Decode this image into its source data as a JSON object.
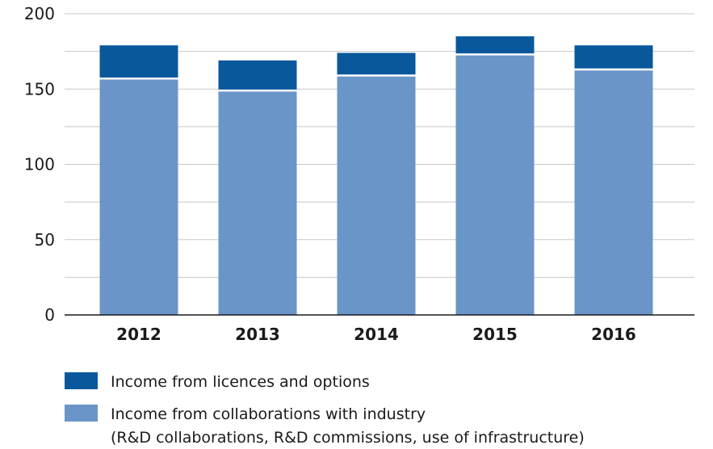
{
  "chart_data": {
    "type": "bar",
    "stacked": true,
    "categories": [
      "2012",
      "2013",
      "2014",
      "2015",
      "2016"
    ],
    "series": [
      {
        "name": "Income from collaborations with industry",
        "name_line2": "(R&D collaborations, R&D commissions, use of infrastructure)",
        "values": [
          157,
          149,
          159,
          173,
          163
        ],
        "color": "#6a95c8"
      },
      {
        "name": "Income from licences and options",
        "values": [
          22,
          20,
          15,
          12,
          16
        ],
        "color": "#0a589c"
      }
    ],
    "yticks": [
      "0",
      "50",
      "100",
      "150",
      "200"
    ],
    "ylim": [
      0,
      200
    ],
    "grid": true,
    "legend_position": "bottom-left",
    "title": "",
    "xlabel": "",
    "ylabel": ""
  }
}
